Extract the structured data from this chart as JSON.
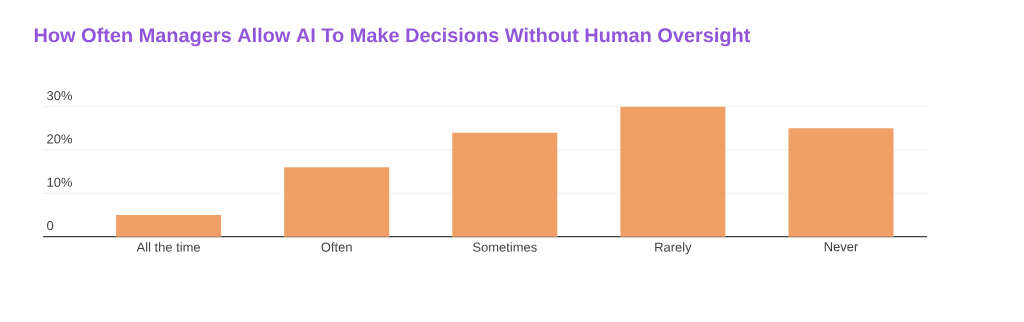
{
  "chart_data": {
    "type": "bar",
    "title": "How Often Managers Allow AI To Make Decisions Without Human Oversight",
    "categories": [
      "All the time",
      "Often",
      "Sometimes",
      "Rarely",
      "Never"
    ],
    "values": [
      5,
      16,
      24,
      30,
      25
    ],
    "color": "#f0a066",
    "ylim": [
      0,
      30
    ],
    "yticks": [
      0,
      {
        "value": 10,
        "label": "10%"
      },
      {
        "value": 20,
        "label": "20%"
      },
      {
        "value": 30,
        "label": "30%"
      }
    ],
    "grid": "y"
  }
}
